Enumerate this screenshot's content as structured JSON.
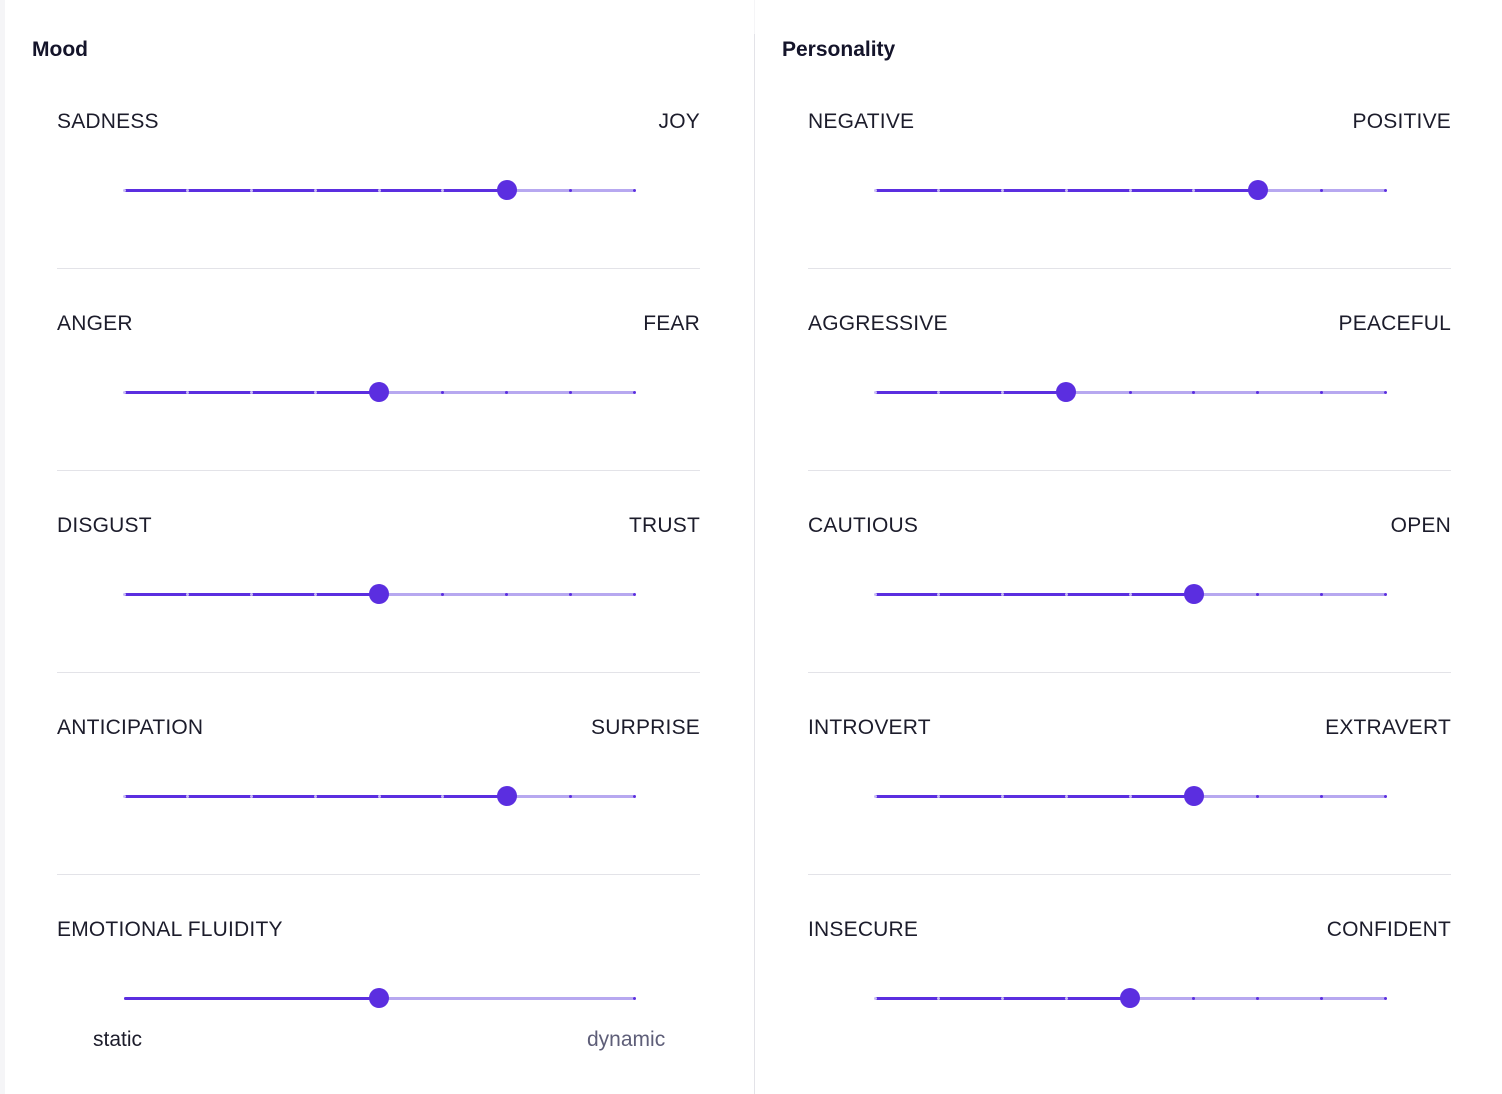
{
  "mood": {
    "title": "Mood",
    "sliders": [
      {
        "left": "SADNESS",
        "right": "JOY",
        "value": 6,
        "max": 8
      },
      {
        "left": "ANGER",
        "right": "FEAR",
        "value": 4,
        "max": 8
      },
      {
        "left": "DISGUST",
        "right": "TRUST",
        "value": 4,
        "max": 8
      },
      {
        "left": "ANTICIPATION",
        "right": "SURPRISE",
        "value": 6,
        "max": 8
      }
    ],
    "fluidity": {
      "label": "EMOTIONAL FLUIDITY",
      "min_label": "static",
      "max_label": "dynamic",
      "value": 0.5
    }
  },
  "personality": {
    "title": "Personality",
    "sliders": [
      {
        "left": "NEGATIVE",
        "right": "POSITIVE",
        "value": 6,
        "max": 8
      },
      {
        "left": "AGGRESSIVE",
        "right": "PEACEFUL",
        "value": 3,
        "max": 8
      },
      {
        "left": "CAUTIOUS",
        "right": "OPEN",
        "value": 5,
        "max": 8
      },
      {
        "left": "INTROVERT",
        "right": "EXTRAVERT",
        "value": 5,
        "max": 8
      },
      {
        "left": "INSECURE",
        "right": "CONFIDENT",
        "value": 4,
        "max": 8
      }
    ]
  },
  "colors": {
    "accent": "#5b2ee0",
    "track": "#b7a8f0",
    "divider": "#e3e3e8",
    "dynamic_label": "#5e5e78"
  }
}
